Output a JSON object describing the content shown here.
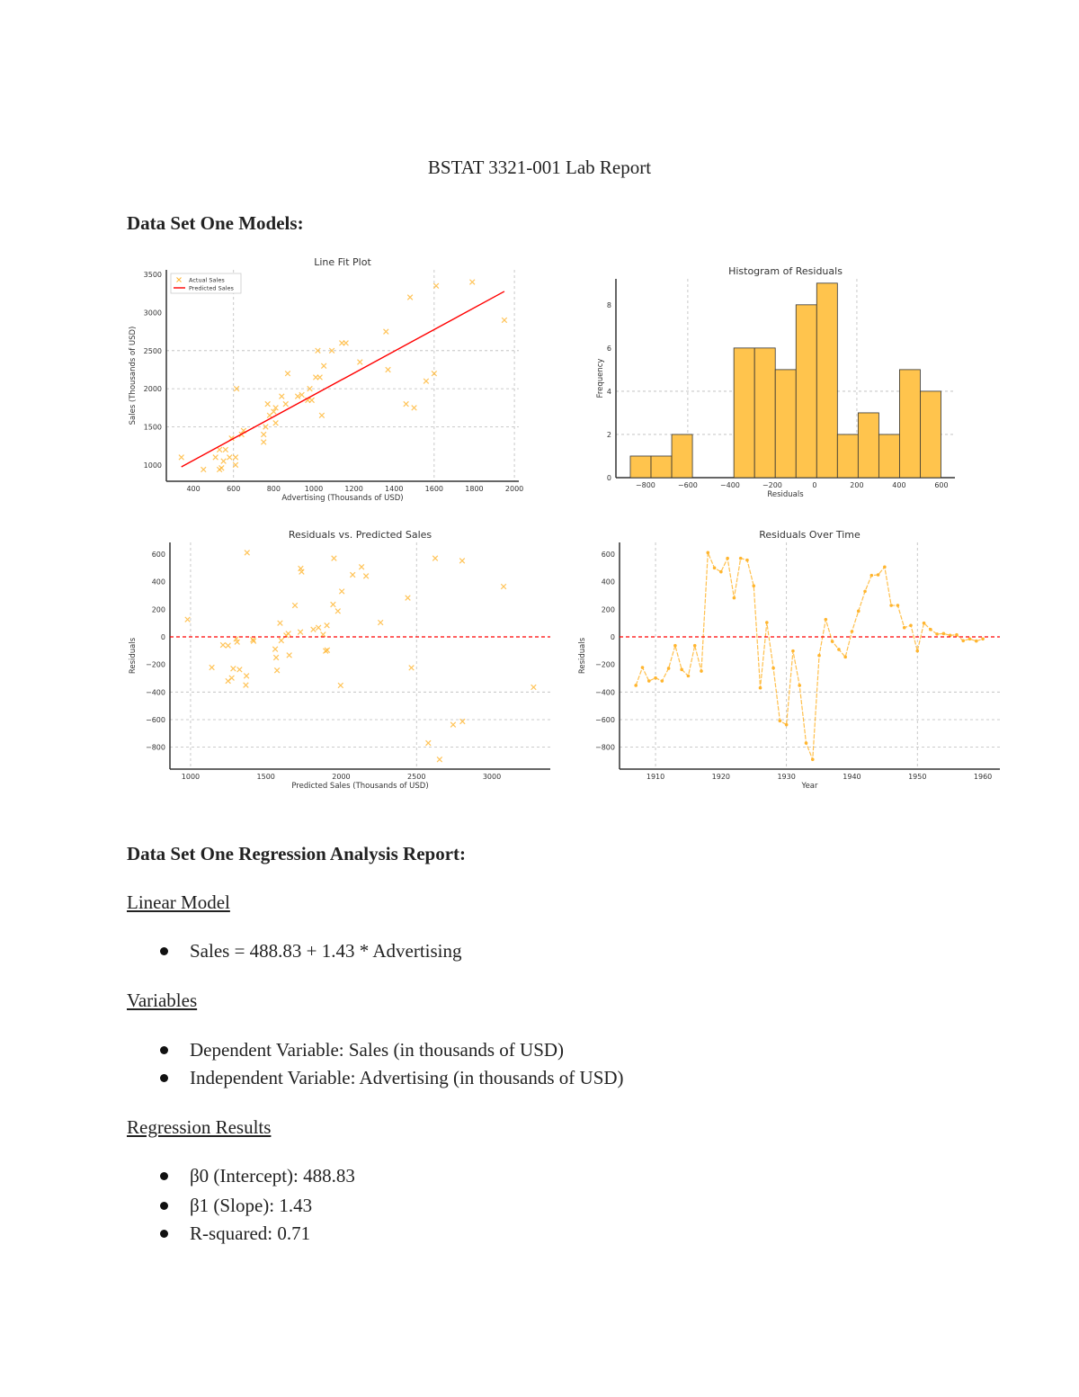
{
  "document": {
    "title": "BSTAT 3321-001 Lab Report",
    "section1_heading": "Data Set One Models:",
    "section2_heading": "Data Set One Regression Analysis Report:",
    "linear_model": {
      "heading": "Linear Model",
      "items": [
        "Sales = 488.83 + 1.43 * Advertising"
      ]
    },
    "variables": {
      "heading": "Variables",
      "items": [
        "Dependent Variable: Sales (in thousands of USD)",
        "Independent Variable: Advertising (in thousands of USD)"
      ]
    },
    "regression_results": {
      "heading": "Regression Results",
      "items": [
        "β0 (Intercept): 488.83",
        "β1 (Slope): 1.43",
        "R-squared: 0.71"
      ]
    }
  },
  "colors": {
    "marker": "#FFB52E",
    "bar": "#FFC44D",
    "bar_edge": "#333333",
    "fit_line": "#FF0000",
    "zero_line": "#FF0000",
    "grid": "#BBBBBB"
  },
  "chart_data": [
    {
      "id": "line-fit",
      "type": "scatter",
      "title": "Line Fit Plot",
      "xlabel": "Advertising (Thousands of USD)",
      "ylabel": "Sales (Thousands of USD)",
      "xlim": [
        265,
        2022
      ],
      "ylim": [
        786,
        3560
      ],
      "xticks": [
        400,
        600,
        800,
        1000,
        1200,
        1400,
        1600,
        1800,
        2000
      ],
      "yticks": [
        1000,
        1500,
        2000,
        2500,
        3000,
        3500
      ],
      "grid": true,
      "legend": {
        "placement": "top-left",
        "entries": [
          "Actual Sales",
          "Predicted Sales"
        ]
      },
      "fit_line": {
        "intercept": 488.83,
        "slope": 1.43,
        "x_range": [
          340,
          1950
        ]
      },
      "points": [
        [
          340,
          1100
        ],
        [
          450,
          940
        ],
        [
          510,
          1100
        ],
        [
          530,
          1200
        ],
        [
          530,
          940
        ],
        [
          540,
          960
        ],
        [
          550,
          1050
        ],
        [
          560,
          1200
        ],
        [
          580,
          1100
        ],
        [
          590,
          1350
        ],
        [
          610,
          1000
        ],
        [
          610,
          1100
        ],
        [
          615,
          2000
        ],
        [
          640,
          1400
        ],
        [
          650,
          1450
        ],
        [
          750,
          1300
        ],
        [
          750,
          1400
        ],
        [
          760,
          1500
        ],
        [
          770,
          1800
        ],
        [
          780,
          1650
        ],
        [
          800,
          1700
        ],
        [
          810,
          1750
        ],
        [
          810,
          1550
        ],
        [
          840,
          1900
        ],
        [
          860,
          1800
        ],
        [
          870,
          2200
        ],
        [
          920,
          1900
        ],
        [
          940,
          1920
        ],
        [
          970,
          1850
        ],
        [
          980,
          2000
        ],
        [
          990,
          1850
        ],
        [
          1010,
          2150
        ],
        [
          1020,
          2500
        ],
        [
          1030,
          2150
        ],
        [
          1040,
          1650
        ],
        [
          1050,
          2300
        ],
        [
          1090,
          2500
        ],
        [
          1140,
          2600
        ],
        [
          1160,
          2600
        ],
        [
          1230,
          2350
        ],
        [
          1360,
          2750
        ],
        [
          1370,
          2250
        ],
        [
          1460,
          1800
        ],
        [
          1480,
          3200
        ],
        [
          1500,
          1750
        ],
        [
          1560,
          2100
        ],
        [
          1600,
          2200
        ],
        [
          1610,
          3350
        ],
        [
          1790,
          3400
        ],
        [
          1950,
          2900
        ]
      ]
    },
    {
      "id": "histogram",
      "type": "bar",
      "title": "Histogram of Residuals",
      "xlabel": "Residuals",
      "ylabel": "Frequency",
      "xlim": [
        -940,
        664
      ],
      "ylim": [
        0,
        9.2
      ],
      "xticks": [
        -800,
        -600,
        -400,
        -200,
        0,
        200,
        400,
        600
      ],
      "yticks": [
        0,
        2,
        4,
        6,
        8
      ],
      "grid": true,
      "bin_start": -872,
      "bin_width": 98,
      "counts": [
        1,
        1,
        2,
        0,
        0,
        6,
        6,
        5,
        8,
        9,
        2,
        3,
        2,
        5,
        4
      ]
    },
    {
      "id": "residuals-vs-predicted",
      "type": "scatter",
      "title": "Residuals vs. Predicted Sales",
      "xlabel": "Predicted Sales (Thousands of USD)",
      "ylabel": "Residuals",
      "xlim": [
        863,
        3388
      ],
      "ylim": [
        -959,
        685
      ],
      "xticks": [
        1000,
        1500,
        2000,
        2500,
        3000
      ],
      "yticks": [
        -800,
        -600,
        -400,
        -200,
        0,
        200,
        400,
        600
      ],
      "grid": true,
      "reference_line_y": 0,
      "points": [
        [
          980,
          126
        ],
        [
          1375,
          611
        ],
        [
          1952,
          570
        ],
        [
          1731,
          496
        ],
        [
          1737,
          472
        ],
        [
          2135,
          507
        ],
        [
          2076,
          450
        ],
        [
          2165,
          441
        ],
        [
          2624,
          570
        ],
        [
          2803,
          552
        ],
        [
          3078,
          365
        ],
        [
          2004,
          330
        ],
        [
          2442,
          283
        ],
        [
          1693,
          228
        ],
        [
          1946,
          235
        ],
        [
          1978,
          187
        ],
        [
          1594,
          100
        ],
        [
          2261,
          104
        ],
        [
          1815,
          54
        ],
        [
          1849,
          67
        ],
        [
          1905,
          83
        ],
        [
          1729,
          35
        ],
        [
          1649,
          24
        ],
        [
          1635,
          11
        ],
        [
          1880,
          17
        ],
        [
          1303,
          -15
        ],
        [
          1309,
          -37
        ],
        [
          1414,
          -20
        ],
        [
          1418,
          -30
        ],
        [
          1602,
          -26
        ],
        [
          1215,
          -59
        ],
        [
          1249,
          -63
        ],
        [
          1562,
          -89
        ],
        [
          1897,
          -102
        ],
        [
          1907,
          -96
        ],
        [
          1568,
          -150
        ],
        [
          1655,
          -133
        ],
        [
          1141,
          -222
        ],
        [
          1283,
          -230
        ],
        [
          1325,
          -237
        ],
        [
          1574,
          -243
        ],
        [
          2466,
          -224
        ],
        [
          1273,
          -298
        ],
        [
          1249,
          -320
        ],
        [
          1371,
          -283
        ],
        [
          1367,
          -350
        ],
        [
          1996,
          -352
        ],
        [
          3277,
          -365
        ],
        [
          2805,
          -613
        ],
        [
          2743,
          -637
        ],
        [
          2578,
          -770
        ],
        [
          2653,
          -889
        ]
      ]
    },
    {
      "id": "residuals-over-time",
      "type": "line",
      "title": "Residuals Over Time",
      "xlabel": "Year",
      "ylabel": "Residuals",
      "xlim": [
        1904.5,
        1962.6
      ],
      "ylim": [
        -959,
        685
      ],
      "xticks": [
        1910,
        1920,
        1930,
        1940,
        1950,
        1960
      ],
      "yticks": [
        -800,
        -600,
        -400,
        -200,
        0,
        200,
        400,
        600
      ],
      "grid": true,
      "reference_line_y": 0,
      "x_start": 1907,
      "values": [
        -352,
        -222,
        -320,
        -298,
        -320,
        -228,
        -63,
        -237,
        -283,
        -63,
        -248,
        611,
        500,
        472,
        570,
        283,
        570,
        557,
        370,
        -370,
        104,
        -226,
        -609,
        -637,
        -102,
        -352,
        -770,
        -889,
        -135,
        126,
        -33,
        -91,
        -146,
        39,
        187,
        330,
        446,
        450,
        507,
        228,
        228,
        67,
        83,
        -102,
        100,
        54,
        20,
        24,
        11,
        15,
        -28,
        -15,
        -30,
        -15
      ]
    }
  ]
}
